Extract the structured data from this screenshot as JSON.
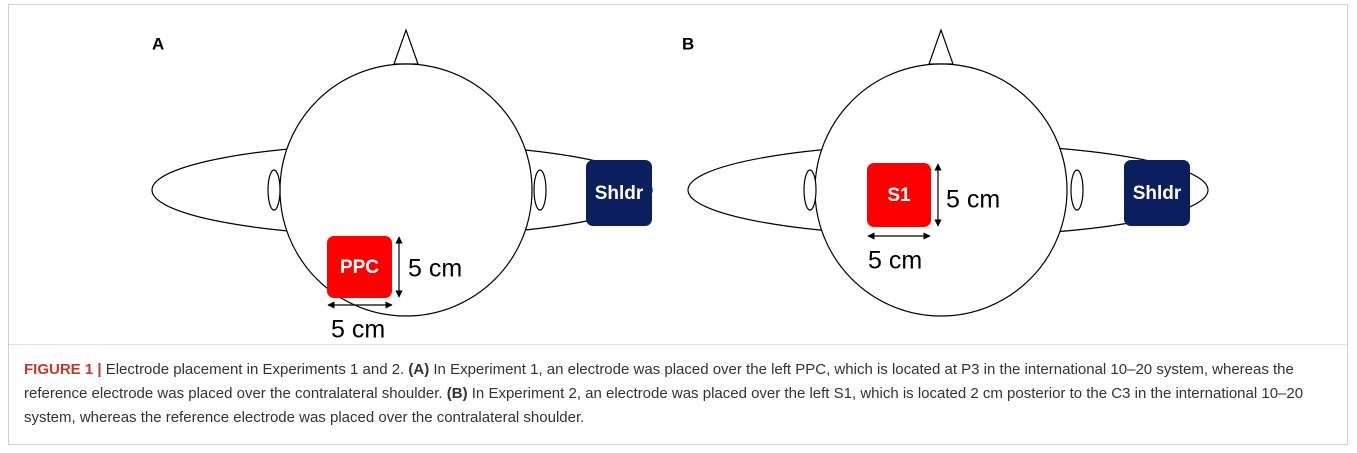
{
  "panels": [
    {
      "label": "A",
      "electrode": "PPC",
      "height_label": "5 cm",
      "width_label": "5 cm",
      "reference": "Shldr"
    },
    {
      "label": "B",
      "electrode": "S1",
      "height_label": "5 cm",
      "width_label": "5 cm",
      "reference": "Shldr"
    }
  ],
  "caption": {
    "label": "FIGURE 1 |",
    "intro": "Electrode placement in Experiments 1 and 2.",
    "marker_a": "(A)",
    "text_a": "In Experiment 1, an electrode was placed over the left PPC, which is located at P3 in the international 10–20 system, whereas the reference electrode was placed over the contralateral shoulder.",
    "marker_b": "(B)",
    "text_b": "In Experiment 2, an electrode was placed over the left S1, which is located 2 cm posterior to the C3 in the international 10–20 system, whereas the reference electrode was placed over the contralateral shoulder."
  }
}
